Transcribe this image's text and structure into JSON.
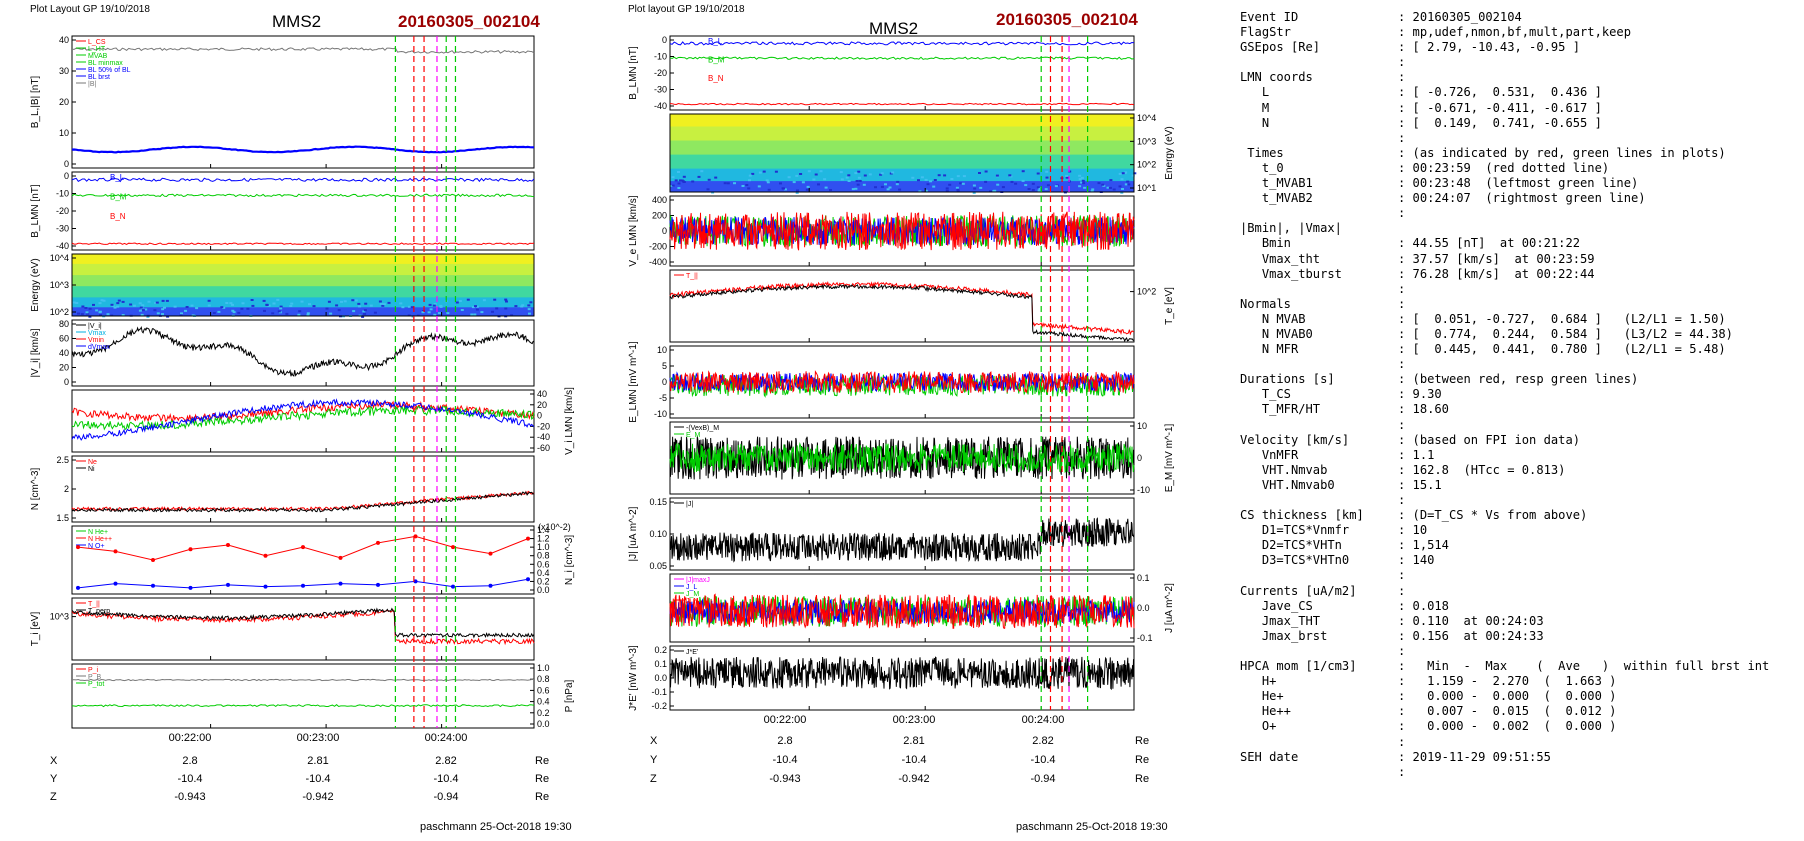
{
  "colors": {
    "red": "#ff0000",
    "green": "#00cc00",
    "blue": "#0000ff",
    "black": "#000000",
    "dark_red": "#9b0000",
    "magenta": "#ff00ff",
    "cyan": "#00b0e0",
    "gray": "#777777"
  },
  "header_left": {
    "meta": "Plot Layout GP 19/10/2018",
    "spacecraft": "MMS2",
    "event": "20160305_002104"
  },
  "header_right": {
    "meta": "Plot layout GP 19/10/2018",
    "spacecraft": "MMS2",
    "event": "20160305_002104"
  },
  "footer_left": "paschmann 25-Oct-2018 19:30",
  "footer_right": "paschmann 25-Oct-2018 19:30",
  "time_ticks": [
    "00:22:00",
    "00:23:00",
    "00:24:00"
  ],
  "position_table": {
    "rows": [
      {
        "label": "X",
        "values": [
          "2.8",
          "2.81",
          "2.82"
        ],
        "unit": "Re"
      },
      {
        "label": "Y",
        "values": [
          "-10.4",
          "-10.4",
          "-10.4"
        ],
        "unit": "Re"
      },
      {
        "label": "Z",
        "values": [
          "-0.943",
          "-0.942",
          "-0.94"
        ],
        "unit": "Re"
      }
    ]
  },
  "chart_data": [
    {
      "type": "line",
      "title": "MMS2 20160305_002104",
      "panels": [
        {
          "ylabel": "B_L,|B| [nT]",
          "ticks": [
            "40",
            "30",
            "20",
            "10",
            "0"
          ],
          "legend": [
            "L_CS",
            "L_HT",
            "MVAB",
            "BL minmax",
            "BL 50% of BL",
            "BL brst",
            "|B|"
          ]
        },
        {
          "ylabel": "B_LMN [nT]",
          "ticks": [
            "0",
            "-10",
            "-20",
            "-30",
            "-40"
          ],
          "series": [
            "B_L",
            "B_M",
            "B_N"
          ]
        },
        {
          "ylabel": "Energy (eV)",
          "ticks": [
            "10^4",
            "10^3",
            "10^2"
          ],
          "kind": "spectrogram"
        },
        {
          "ylabel": "|V_i| [km/s]",
          "ticks": [
            "80",
            "60",
            "40",
            "20",
            "0"
          ],
          "legend": [
            "|V_i|",
            "Vmax",
            "Vmin",
            "dVmax"
          ]
        },
        {
          "ylabel": "V_i LMN [km/s]",
          "ticks": [
            "40",
            "20",
            "0",
            "-20",
            "-40",
            "-60"
          ]
        },
        {
          "ylabel": "N [cm^-3]",
          "ticks": [
            "2.5",
            "2",
            "1.5"
          ],
          "legend": [
            "Ne",
            "Ni"
          ]
        },
        {
          "ylabel": "N_i [cm^-3]",
          "ticks": [
            "1.4",
            "1.2",
            "1.0",
            "0.8",
            "0.6",
            "0.4",
            "0.2",
            "0.0"
          ],
          "scale": "(x10^-2)",
          "legend": [
            "N He+",
            "N He++",
            "N O+"
          ],
          "series": [
            {
              "name": "N He++",
              "values": [
                1.0,
                0.9,
                0.7,
                0.95,
                1.05,
                0.8,
                1.0,
                0.75,
                1.1,
                1.25,
                1.0,
                0.85,
                1.2
              ]
            },
            {
              "name": "N O+",
              "values": [
                0.05,
                0.15,
                0.1,
                0.05,
                0.12,
                0.08,
                0.1,
                0.15,
                0.12,
                0.2,
                0.08,
                0.1,
                0.25
              ]
            }
          ]
        },
        {
          "ylabel": "T_i [eV]",
          "ticks": [
            "10^3"
          ],
          "legend": [
            "T_||",
            "T_perp"
          ]
        },
        {
          "ylabel": "P [nPa]",
          "ticks": [
            "1.0",
            "0.8",
            "0.6",
            "0.4",
            "0.2",
            "0.0"
          ],
          "legend": [
            "P_i",
            "P_B",
            "P_tot"
          ]
        }
      ]
    },
    {
      "type": "line",
      "title": "MMS2 20160305_002104",
      "panels": [
        {
          "ylabel": "B_LMN [nT]",
          "ticks": [
            "0",
            "-10",
            "-20",
            "-30",
            "-40"
          ],
          "series": [
            "B_L",
            "B_M",
            "B_N"
          ]
        },
        {
          "ylabel": "Energy (eV)",
          "ticks": [
            "10^4",
            "10^3",
            "10^2",
            "10^1"
          ],
          "kind": "spectrogram"
        },
        {
          "ylabel": "V_e LMN [km/s]",
          "ticks": [
            "400",
            "200",
            "0",
            "-200",
            "-400"
          ]
        },
        {
          "ylabel": "T_e [eV]",
          "ticks": [
            "10^2"
          ],
          "legend": [
            "T_||"
          ]
        },
        {
          "ylabel": "E_LMN [mV m^-1]",
          "ticks": [
            "10",
            "5",
            "0",
            "-5",
            "-10"
          ]
        },
        {
          "ylabel": "E_M [mV m^-1]",
          "ticks": [
            "10",
            "0",
            "-10"
          ],
          "legend": [
            "-(VexB)_M",
            "E_M"
          ]
        },
        {
          "ylabel": "|J| [uA m^-2]",
          "ticks": [
            "0.15",
            "0.10",
            "0.05"
          ],
          "legend": [
            "|J|"
          ]
        },
        {
          "ylabel": "J [uA m^-2]",
          "ticks": [
            "0.1",
            "0.0",
            "-0.1"
          ],
          "legend": [
            "|J|maxJ",
            "J_L",
            "J_M",
            "J_N"
          ]
        },
        {
          "ylabel": "J*E' [nW m^-3]",
          "ticks": [
            "0.2",
            "0.1",
            "0.0",
            "-0.1",
            "-0.2"
          ],
          "legend": [
            "J*E'"
          ]
        }
      ]
    }
  ],
  "summary": [
    {
      "label": "Event ID",
      "value": ": 20160305_002104"
    },
    {
      "label": "FlagStr",
      "value": ": mp,udef,nmon,bf,mult,part,keep"
    },
    {
      "label": "GSEpos [Re]",
      "value": ": [ 2.79, -10.43, -0.95 ]"
    },
    {
      "label": "",
      "value": ":"
    },
    {
      "label": "LMN coords",
      "value": ":"
    },
    {
      "label": "   L",
      "value": ": [ -0.726,  0.531,  0.436 ]"
    },
    {
      "label": "   M",
      "value": ": [ -0.671, -0.411, -0.617 ]"
    },
    {
      "label": "   N",
      "value": ": [  0.149,  0.741, -0.655 ]"
    },
    {
      "label": "",
      "value": ":"
    },
    {
      "label": " Times",
      "value": ": (as indicated by red, green lines in plots)"
    },
    {
      "label": "   t_0",
      "value": ": 00:23:59  (red dotted line)"
    },
    {
      "label": "   t_MVAB1",
      "value": ": 00:23:48  (leftmost green line)"
    },
    {
      "label": "   t_MVAB2",
      "value": ": 00:24:07  (rightmost green line)"
    },
    {
      "label": "",
      "value": ":"
    },
    {
      "label": "|Bmin|, |Vmax|",
      "value": ""
    },
    {
      "label": "   Bmin",
      "value": ": 44.55 [nT]  at 00:21:22"
    },
    {
      "label": "   Vmax_tht",
      "value": ": 37.57 [km/s]  at 00:23:59"
    },
    {
      "label": "   Vmax_tburst",
      "value": ": 76.28 [km/s]  at 00:22:44"
    },
    {
      "label": "",
      "value": ":"
    },
    {
      "label": "Normals",
      "value": ":"
    },
    {
      "label": "   N MVAB",
      "value": ": [  0.051, -0.727,  0.684 ]   (L2/L1 = 1.50)"
    },
    {
      "label": "   N MVAB0",
      "value": ": [  0.774,  0.244,  0.584 ]   (L3/L2 = 44.38)"
    },
    {
      "label": "   N MFR",
      "value": ": [  0.445,  0.441,  0.780 ]   (L2/L1 = 5.48)"
    },
    {
      "label": "",
      "value": ":"
    },
    {
      "label": "Durations [s]",
      "value": ": (between red, resp green lines)"
    },
    {
      "label": "   T_CS",
      "value": ": 9.30"
    },
    {
      "label": "   T_MFR/HT",
      "value": ": 18.60"
    },
    {
      "label": "",
      "value": ":"
    },
    {
      "label": "Velocity [km/s]",
      "value": ": (based on FPI ion data)"
    },
    {
      "label": "   VnMFR",
      "value": ": 1.1"
    },
    {
      "label": "   VHT.Nmvab",
      "value": ": 162.8  (HTcc = 0.813)"
    },
    {
      "label": "   VHT.Nmvab0",
      "value": ": 15.1"
    },
    {
      "label": "",
      "value": ":"
    },
    {
      "label": "CS thickness [km]",
      "value": ": (D=T_CS * Vs from above)"
    },
    {
      "label": "   D1=TCS*Vnmfr",
      "value": ": 10"
    },
    {
      "label": "   D2=TCS*VHTn",
      "value": ": 1,514"
    },
    {
      "label": "   D3=TCS*VHTn0",
      "value": ": 140"
    },
    {
      "label": "",
      "value": ":"
    },
    {
      "label": "Currents [uA/m2]",
      "value": ":"
    },
    {
      "label": "   Jave_CS",
      "value": ": 0.018"
    },
    {
      "label": "   Jmax_THT",
      "value": ": 0.110  at 00:24:03"
    },
    {
      "label": "   Jmax_brst",
      "value": ": 0.156  at 00:24:33"
    },
    {
      "label": "",
      "value": ":"
    },
    {
      "label": "HPCA mom [1/cm3]",
      "value": ":   Min  -  Max    (  Ave   )  within full brst int"
    },
    {
      "label": "   H+",
      "value": ":   1.159 -  2.270  (  1.663 )"
    },
    {
      "label": "   He+",
      "value": ":   0.000 -  0.000  (  0.000 )"
    },
    {
      "label": "   He++",
      "value": ":   0.007 -  0.015  (  0.012 )"
    },
    {
      "label": "   O+",
      "value": ":   0.000 -  0.002  (  0.000 )"
    },
    {
      "label": "",
      "value": ":"
    },
    {
      "label": "SEH date",
      "value": ": 2019-11-29 09:51:55"
    },
    {
      "label": "",
      "value": ":"
    }
  ]
}
